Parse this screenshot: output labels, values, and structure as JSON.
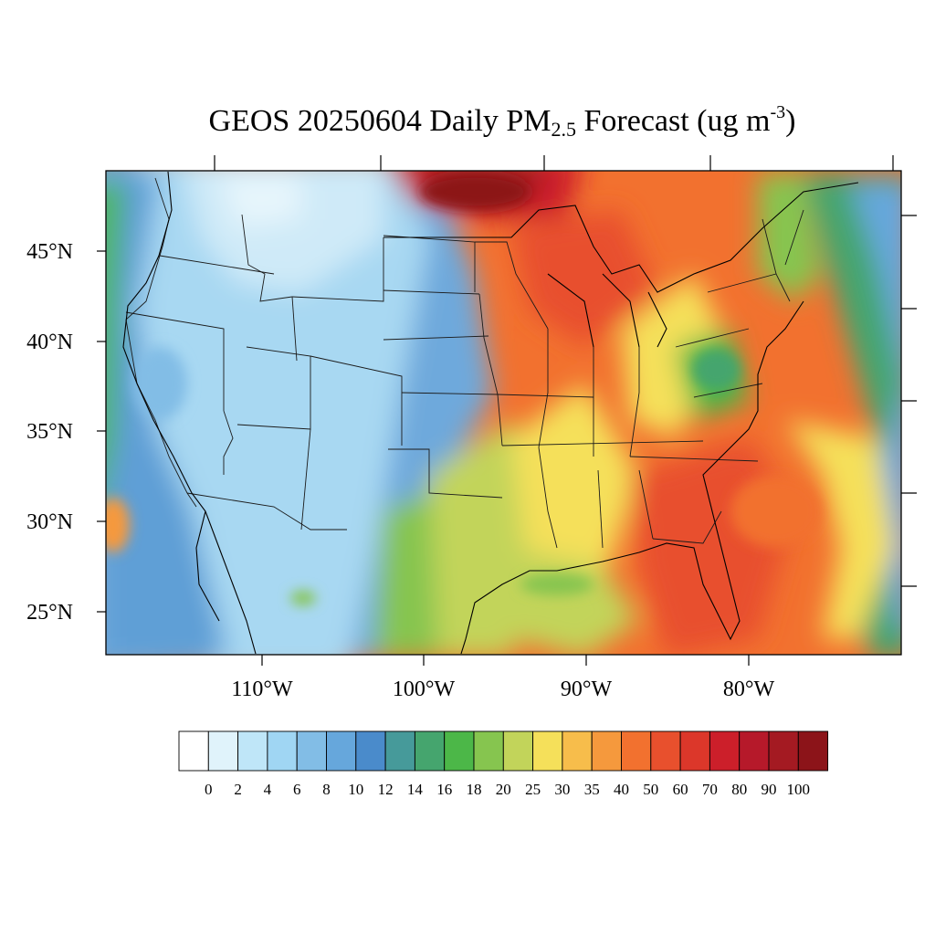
{
  "title": {
    "prefix": "GEOS 20250604 Daily PM",
    "subscript": "2.5",
    "middle": " Forecast (ug m",
    "superscript": "-3",
    "suffix": ")"
  },
  "map": {
    "region": "Contiguous United States",
    "projection": "lat-lon",
    "lon_range": [
      -124,
      -75
    ],
    "lat_range": [
      22.8,
      49.6
    ],
    "lat_labels": [
      "45°N",
      "40°N",
      "35°N",
      "30°N",
      "25°N"
    ],
    "lon_labels": [
      "110°W",
      "100°W",
      "90°W",
      "80°W"
    ]
  },
  "colorbar": {
    "labels": [
      "0",
      "2",
      "4",
      "6",
      "8",
      "10",
      "12",
      "14",
      "16",
      "18",
      "20",
      "25",
      "30",
      "35",
      "40",
      "50",
      "60",
      "70",
      "80",
      "90",
      "100"
    ],
    "colors": [
      "#ffffff",
      "#e0f3fb",
      "#bfe6f8",
      "#a0d6f3",
      "#82bde6",
      "#66a7dc",
      "#4a8bcb",
      "#469a9a",
      "#45a56e",
      "#4cb748",
      "#86c54f",
      "#c2d45a",
      "#f5e05a",
      "#f7bd4b",
      "#f5993d",
      "#f2712f",
      "#e8502d",
      "#dc372a",
      "#cc1f2a",
      "#b6192a",
      "#a41a22",
      "#8c1419"
    ]
  }
}
